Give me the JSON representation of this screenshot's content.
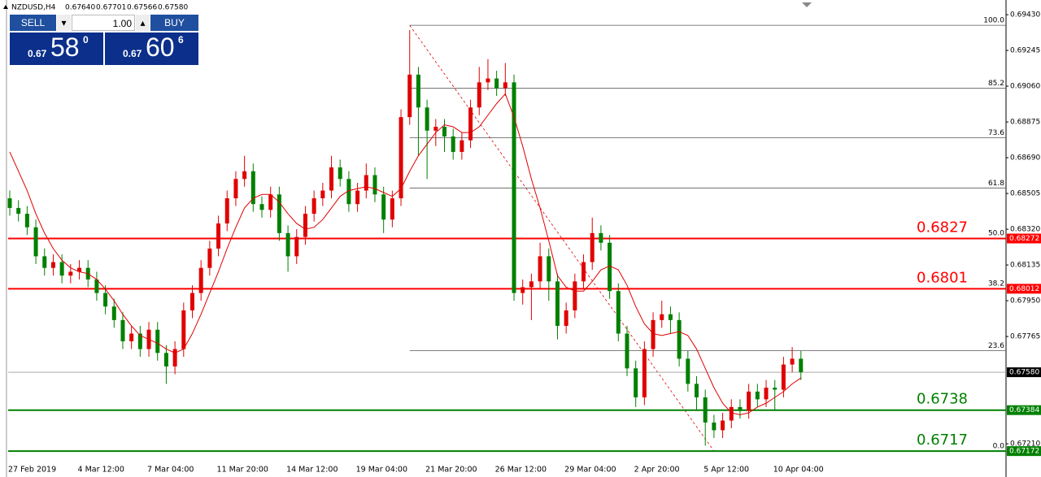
{
  "header": {
    "symbol": "NZDUSD,H4",
    "prices": [
      "0.67640",
      "0.67701",
      "0.67566",
      "0.67580"
    ]
  },
  "trade_panel": {
    "sell": "SELL",
    "buy": "BUY",
    "lots": "1.00",
    "bid": {
      "big": "0.67",
      "pips": "58",
      "fraction": "0"
    },
    "ask": {
      "big": "0.67",
      "pips": "60",
      "fraction": "6"
    }
  },
  "chart_data": {
    "type": "candlestick",
    "categories": [
      "27 Feb 2019",
      null,
      null,
      null,
      null,
      null,
      null,
      null,
      "4 Mar 12:00",
      null,
      null,
      null,
      null,
      null,
      null,
      null,
      "7 Mar 04:00",
      null,
      null,
      null,
      null,
      null,
      null,
      null,
      "11 Mar 20:00",
      null,
      null,
      null,
      null,
      null,
      null,
      null,
      "14 Mar 12:00",
      null,
      null,
      null,
      null,
      null,
      null,
      null,
      "19 Mar 04:00",
      null,
      null,
      null,
      null,
      null,
      null,
      null,
      "21 Mar 20:00",
      null,
      null,
      null,
      null,
      null,
      null,
      null,
      "26 Mar 12:00",
      null,
      null,
      null,
      null,
      null,
      null,
      null,
      "29 Mar 04:00",
      null,
      null,
      null,
      null,
      null,
      null,
      null,
      "2 Apr 20:00",
      null,
      null,
      null,
      null,
      null,
      null,
      null,
      "5 Apr 12:00",
      null,
      null,
      null,
      null,
      null,
      null,
      null,
      "10 Apr 04:00",
      null,
      null,
      null
    ],
    "open": [
      0.6848,
      0.6843,
      0.684,
      0.6833,
      0.6818,
      0.6812,
      0.6815,
      0.6808,
      0.681,
      0.6812,
      0.6806,
      0.6799,
      0.6792,
      0.6785,
      0.6774,
      0.6778,
      0.677,
      0.678,
      0.6768,
      0.6761,
      0.677,
      0.679,
      0.6799,
      0.6812,
      0.6822,
      0.6835,
      0.6848,
      0.6858,
      0.6862,
      0.6845,
      0.6842,
      0.685,
      0.683,
      0.6818,
      0.6828,
      0.684,
      0.6848,
      0.6852,
      0.6864,
      0.6858,
      0.6845,
      0.6852,
      0.686,
      0.685,
      0.6837,
      0.6848,
      0.689,
      0.6912,
      0.6895,
      0.6883,
      0.6885,
      0.688,
      0.6872,
      0.6878,
      0.6895,
      0.6908,
      0.691,
      0.6905,
      0.6908,
      0.6799,
      0.6802,
      0.6805,
      0.6818,
      0.6805,
      0.6782,
      0.679,
      0.6805,
      0.6815,
      0.683,
      0.6825,
      0.68,
      0.6778,
      0.676,
      0.6745,
      0.677,
      0.6785,
      0.6788,
      0.6785,
      0.6765,
      0.6752,
      0.6745,
      0.6732,
      0.6728,
      0.6733,
      0.674,
      0.6738,
      0.6748,
      0.6744,
      0.675,
      0.6749,
      0.6762,
      0.6765
    ],
    "high": [
      0.6852,
      0.6847,
      0.6844,
      0.6837,
      0.6822,
      0.6819,
      0.6819,
      0.6814,
      0.6816,
      0.6816,
      0.681,
      0.6803,
      0.6796,
      0.6789,
      0.6782,
      0.6782,
      0.6784,
      0.6784,
      0.6772,
      0.6774,
      0.6794,
      0.6803,
      0.6816,
      0.6826,
      0.6839,
      0.6852,
      0.6862,
      0.687,
      0.6866,
      0.6849,
      0.6854,
      0.6854,
      0.6834,
      0.6832,
      0.6844,
      0.6852,
      0.6856,
      0.687,
      0.6868,
      0.6862,
      0.6856,
      0.6866,
      0.6864,
      0.6854,
      0.6852,
      0.6894,
      0.6935,
      0.6916,
      0.6899,
      0.6889,
      0.6889,
      0.6884,
      0.6882,
      0.6899,
      0.6916,
      0.692,
      0.6914,
      0.6918,
      0.6912,
      0.6806,
      0.6809,
      0.6825,
      0.6822,
      0.6809,
      0.6794,
      0.6809,
      0.6819,
      0.6838,
      0.6834,
      0.6829,
      0.6804,
      0.6782,
      0.6764,
      0.6774,
      0.6789,
      0.6795,
      0.6792,
      0.6789,
      0.6769,
      0.6756,
      0.6749,
      0.6736,
      0.6737,
      0.6744,
      0.6744,
      0.6752,
      0.6752,
      0.6754,
      0.6754,
      0.6766,
      0.6771,
      0.6769
    ],
    "low": [
      0.6839,
      0.6836,
      0.6829,
      0.6814,
      0.6808,
      0.6808,
      0.6804,
      0.6804,
      0.6806,
      0.6802,
      0.6795,
      0.6788,
      0.6781,
      0.677,
      0.677,
      0.6766,
      0.6766,
      0.6764,
      0.6752,
      0.6757,
      0.6766,
      0.6786,
      0.6795,
      0.6808,
      0.6818,
      0.6831,
      0.6844,
      0.6854,
      0.6841,
      0.6838,
      0.6838,
      0.6826,
      0.681,
      0.6814,
      0.6824,
      0.6836,
      0.6844,
      0.6848,
      0.6854,
      0.6841,
      0.6841,
      0.6848,
      0.6846,
      0.683,
      0.6833,
      0.6844,
      0.6886,
      0.687,
      0.6858,
      0.6875,
      0.6872,
      0.6868,
      0.6868,
      0.6874,
      0.6891,
      0.6904,
      0.6901,
      0.6901,
      0.6795,
      0.6793,
      0.6785,
      0.6801,
      0.6795,
      0.6775,
      0.6778,
      0.6786,
      0.6801,
      0.6811,
      0.6821,
      0.6796,
      0.6774,
      0.6756,
      0.674,
      0.6741,
      0.6766,
      0.6781,
      0.6778,
      0.6761,
      0.6748,
      0.6738,
      0.672,
      0.6724,
      0.6724,
      0.6729,
      0.6734,
      0.6734,
      0.674,
      0.674,
      0.6738,
      0.6745,
      0.6758,
      0.6754
    ],
    "close": [
      0.6843,
      0.684,
      0.6833,
      0.6818,
      0.6812,
      0.6815,
      0.6808,
      0.681,
      0.6812,
      0.6806,
      0.6799,
      0.6792,
      0.6785,
      0.6774,
      0.6778,
      0.677,
      0.678,
      0.6768,
      0.6761,
      0.677,
      0.679,
      0.6799,
      0.6812,
      0.6822,
      0.6835,
      0.6848,
      0.6858,
      0.6862,
      0.6845,
      0.6842,
      0.685,
      0.683,
      0.6818,
      0.6828,
      0.684,
      0.6848,
      0.6852,
      0.6864,
      0.6858,
      0.6845,
      0.6852,
      0.686,
      0.685,
      0.6837,
      0.6848,
      0.689,
      0.6912,
      0.6895,
      0.6883,
      0.6885,
      0.688,
      0.6872,
      0.6878,
      0.6895,
      0.6908,
      0.691,
      0.6905,
      0.6908,
      0.6799,
      0.6802,
      0.6805,
      0.6818,
      0.6805,
      0.6782,
      0.679,
      0.6805,
      0.6815,
      0.683,
      0.6825,
      0.68,
      0.6778,
      0.676,
      0.6745,
      0.677,
      0.6785,
      0.6788,
      0.6785,
      0.6765,
      0.6752,
      0.6745,
      0.6732,
      0.6728,
      0.6733,
      0.674,
      0.6738,
      0.6748,
      0.6744,
      0.675,
      0.6749,
      0.6762,
      0.6765,
      0.6758
    ],
    "moving_average": {
      "color": "#e00000",
      "values": [
        0.6872,
        0.6862,
        0.6852,
        0.684,
        0.683,
        0.6822,
        0.6816,
        0.6812,
        0.681,
        0.6809,
        0.6806,
        0.6801,
        0.6795,
        0.6788,
        0.6782,
        0.6777,
        0.6775,
        0.6773,
        0.677,
        0.6768,
        0.677,
        0.6778,
        0.6788,
        0.6799,
        0.681,
        0.6822,
        0.6833,
        0.6843,
        0.6848,
        0.685,
        0.685,
        0.6846,
        0.684,
        0.6835,
        0.6832,
        0.6833,
        0.6837,
        0.6843,
        0.6849,
        0.6852,
        0.6853,
        0.6854,
        0.6853,
        0.6851,
        0.6849,
        0.6853,
        0.6862,
        0.687,
        0.6876,
        0.6882,
        0.6886,
        0.6885,
        0.6882,
        0.6882,
        0.6885,
        0.6891,
        0.6897,
        0.6902,
        0.689,
        0.6875,
        0.6858,
        0.6843,
        0.6826,
        0.6808,
        0.6802,
        0.68,
        0.68,
        0.6805,
        0.6811,
        0.6813,
        0.6811,
        0.6803,
        0.6792,
        0.6783,
        0.6778,
        0.6777,
        0.6778,
        0.6779,
        0.6777,
        0.677,
        0.676,
        0.675,
        0.6742,
        0.6737,
        0.6736,
        0.6737,
        0.674,
        0.6742,
        0.6745,
        0.6748,
        0.6752,
        0.6755
      ]
    },
    "up_color": "#e00000",
    "down_color": "#008000",
    "ylim": [
      0.67038,
      0.69506
    ],
    "yticks": [
      {
        "value": 0.6943,
        "label": "0.69430"
      },
      {
        "value": 0.69245,
        "label": "0.69245"
      },
      {
        "value": 0.6906,
        "label": "0.69060"
      },
      {
        "value": 0.68875,
        "label": "0.68875"
      },
      {
        "value": 0.6869,
        "label": "0.68690"
      },
      {
        "value": 0.68505,
        "label": "0.68505"
      },
      {
        "value": 0.6832,
        "label": "0.68320"
      },
      {
        "value": 0.68135,
        "label": "0.68135"
      },
      {
        "value": 0.6795,
        "label": "0.67950"
      },
      {
        "value": 0.67765,
        "label": "0.67765"
      },
      {
        "value": 0.6721,
        "label": "0.67210"
      }
    ],
    "current_price": {
      "value": 0.6758,
      "label": "0.67580"
    },
    "levels": [
      {
        "value": 0.68272,
        "label": "0.6827",
        "color": "#ff0000"
      },
      {
        "value": 0.68012,
        "label": "0.6801",
        "color": "#ff0000"
      },
      {
        "value": 0.67384,
        "label": "0.6738",
        "color": "#008000"
      },
      {
        "value": 0.67172,
        "label": "0.6717",
        "color": "#008000"
      }
    ],
    "fibonacci": {
      "high": 0.69375,
      "low": 0.67172,
      "start": 46,
      "end": 81,
      "levels": [
        {
          "value": 100,
          "label": "100.0"
        },
        85.2,
        73.6,
        61.8,
        {
          "value": 50,
          "label": "50.0"
        },
        38.2,
        23.6,
        {
          "value": 0,
          "label": "0.0"
        }
      ]
    }
  }
}
